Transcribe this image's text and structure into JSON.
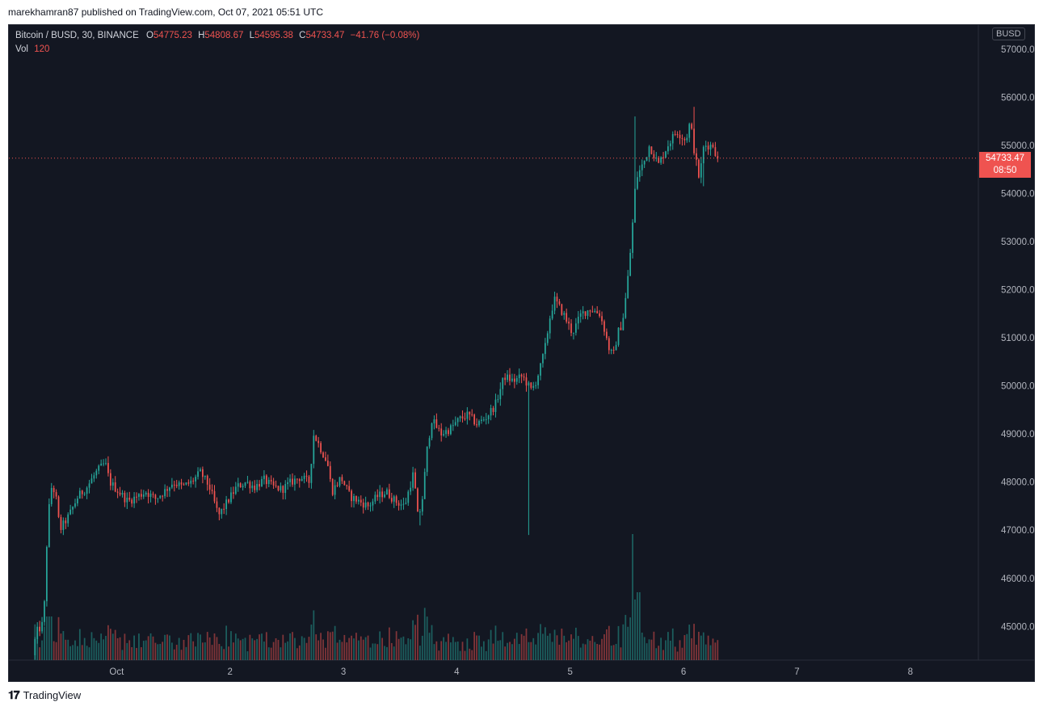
{
  "header": {
    "published_text": "marekhamran87 published on TradingView.com, Oct 07, 2021 05:51 UTC"
  },
  "legend": {
    "symbol": "Bitcoin / BUSD, 30, BINANCE",
    "o_label": "O",
    "o_value": "54775.23",
    "h_label": "H",
    "h_value": "54808.67",
    "l_label": "L",
    "l_value": "54595.38",
    "c_label": "C",
    "c_value": "54733.47",
    "change": "−41.76 (−0.08%)",
    "vol_label": "Vol",
    "vol_value": "120"
  },
  "currency_badge": "BUSD",
  "last_price": {
    "price": "54733.47",
    "countdown": "08:50"
  },
  "footer": {
    "brand": "TradingView",
    "logo": "tv-logo-icon"
  },
  "colors": {
    "up": "#26a69a",
    "down": "#ef5350",
    "background": "#131722",
    "axis_text": "#b2b5be"
  },
  "chart_data": {
    "type": "candlestick",
    "title": "Bitcoin / BUSD, 30, BINANCE",
    "xlabel": "",
    "ylabel": "",
    "ylim": [
      44300,
      57500
    ],
    "y_ticks": [
      "57000.00",
      "56000.00",
      "55000.00",
      "54000.00",
      "53000.00",
      "52000.00",
      "51000.00",
      "50000.00",
      "49000.00",
      "48000.00",
      "47000.00",
      "46000.00",
      "45000.00"
    ],
    "x_ticks": [
      {
        "label": "Oct",
        "day": 1
      },
      {
        "label": "2",
        "day": 2
      },
      {
        "label": "3",
        "day": 3
      },
      {
        "label": "4",
        "day": 4
      },
      {
        "label": "5",
        "day": 5
      },
      {
        "label": "6",
        "day": 6
      },
      {
        "label": "7",
        "day": 7
      },
      {
        "label": "8",
        "day": 8
      }
    ],
    "xlim_days": [
      0.05,
      8.6
    ],
    "last_price_line": 54733.47,
    "price_path_keypoints": [
      [
        0.28,
        44400
      ],
      [
        0.3,
        44700
      ],
      [
        0.32,
        44900
      ],
      [
        0.34,
        44950
      ],
      [
        0.36,
        45000
      ],
      [
        0.38,
        45200
      ],
      [
        0.4,
        46500
      ],
      [
        0.42,
        47300
      ],
      [
        0.44,
        47900
      ],
      [
        0.48,
        47800
      ],
      [
        0.52,
        47000
      ],
      [
        0.6,
        47300
      ],
      [
        0.68,
        47700
      ],
      [
        0.76,
        47900
      ],
      [
        0.84,
        48200
      ],
      [
        0.92,
        48400
      ],
      [
        0.96,
        48000
      ],
      [
        1.04,
        47800
      ],
      [
        1.12,
        47600
      ],
      [
        1.2,
        47700
      ],
      [
        1.28,
        47800
      ],
      [
        1.36,
        47650
      ],
      [
        1.44,
        47800
      ],
      [
        1.52,
        48000
      ],
      [
        1.6,
        47900
      ],
      [
        1.68,
        48000
      ],
      [
        1.76,
        48200
      ],
      [
        1.84,
        47900
      ],
      [
        1.92,
        47300
      ],
      [
        2.0,
        47600
      ],
      [
        2.08,
        47900
      ],
      [
        2.16,
        48000
      ],
      [
        2.24,
        47900
      ],
      [
        2.32,
        48050
      ],
      [
        2.4,
        47900
      ],
      [
        2.48,
        47850
      ],
      [
        2.56,
        48000
      ],
      [
        2.64,
        48100
      ],
      [
        2.72,
        48000
      ],
      [
        2.76,
        49000
      ],
      [
        2.8,
        48800
      ],
      [
        2.88,
        48400
      ],
      [
        2.92,
        47800
      ],
      [
        3.0,
        48100
      ],
      [
        3.08,
        47700
      ],
      [
        3.16,
        47600
      ],
      [
        3.24,
        47500
      ],
      [
        3.32,
        47700
      ],
      [
        3.4,
        47800
      ],
      [
        3.48,
        47600
      ],
      [
        3.56,
        47500
      ],
      [
        3.64,
        48200
      ],
      [
        3.68,
        47200
      ],
      [
        3.72,
        47700
      ],
      [
        3.76,
        48700
      ],
      [
        3.8,
        49300
      ],
      [
        3.88,
        49000
      ],
      [
        3.96,
        49100
      ],
      [
        4.04,
        49300
      ],
      [
        4.12,
        49400
      ],
      [
        4.2,
        49200
      ],
      [
        4.28,
        49350
      ],
      [
        4.36,
        49600
      ],
      [
        4.4,
        49900
      ],
      [
        4.44,
        50200
      ],
      [
        4.52,
        50100
      ],
      [
        4.6,
        50200
      ],
      [
        4.68,
        49900
      ],
      [
        4.72,
        50100
      ],
      [
        4.76,
        50400
      ],
      [
        4.8,
        50800
      ],
      [
        4.84,
        51400
      ],
      [
        4.88,
        51800
      ],
      [
        4.96,
        51500
      ],
      [
        5.04,
        51100
      ],
      [
        5.12,
        51500
      ],
      [
        5.2,
        51600
      ],
      [
        5.28,
        51500
      ],
      [
        5.32,
        51200
      ],
      [
        5.36,
        50800
      ],
      [
        5.4,
        50600
      ],
      [
        5.44,
        51100
      ],
      [
        5.48,
        51300
      ],
      [
        5.52,
        52000
      ],
      [
        5.56,
        53000
      ],
      [
        5.6,
        54300
      ],
      [
        5.64,
        54500
      ],
      [
        5.68,
        54700
      ],
      [
        5.72,
        55000
      ],
      [
        5.8,
        54600
      ],
      [
        5.88,
        55000
      ],
      [
        5.96,
        55300
      ],
      [
        6.04,
        55100
      ],
      [
        6.08,
        55500
      ],
      [
        6.12,
        54800
      ],
      [
        6.16,
        54300
      ],
      [
        6.2,
        55000
      ],
      [
        6.28,
        55000
      ],
      [
        6.32,
        54733
      ]
    ],
    "volume_note": "volume histogram at bottom, peak near day 5.55"
  }
}
